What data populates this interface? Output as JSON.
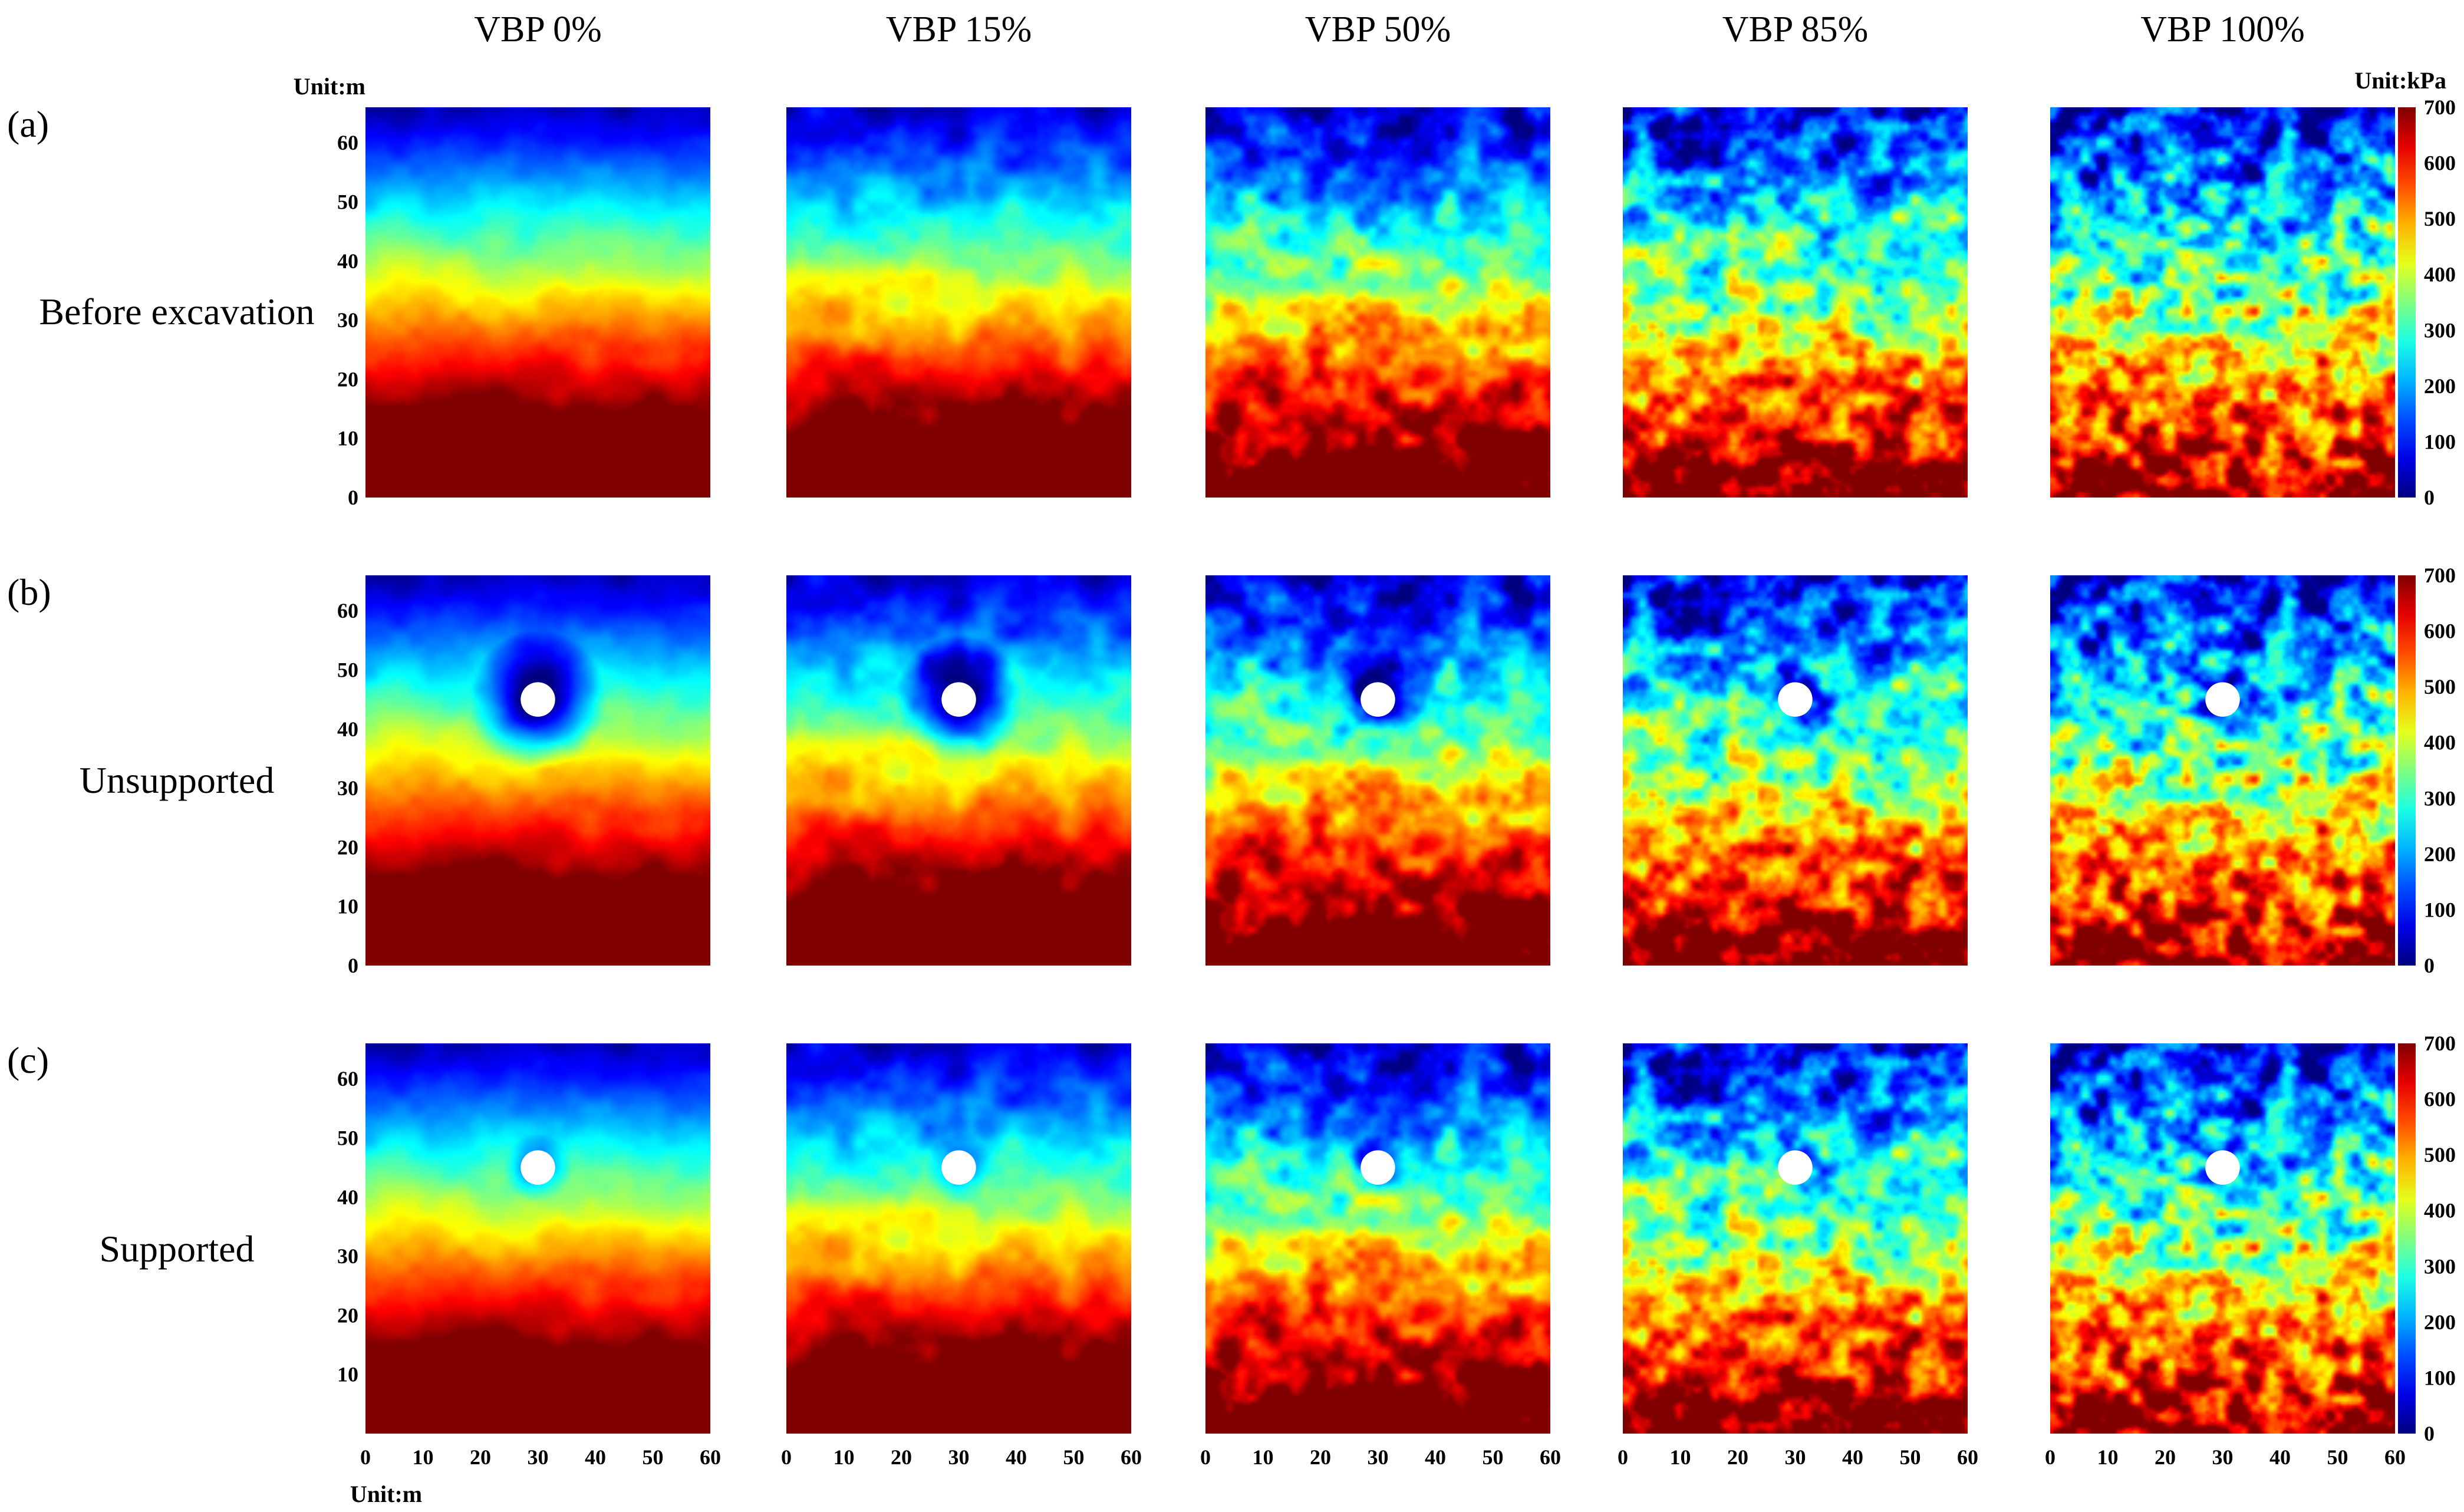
{
  "chart_data": {
    "type": "heatmap",
    "title": "",
    "column_titles": [
      "VBP 0%",
      "VBP 15%",
      "VBP 50%",
      "VBP 85%",
      "VBP 100%"
    ],
    "rows": [
      {
        "letter": "(a)",
        "label": "Before excavation",
        "tunnel": false
      },
      {
        "letter": "(b)",
        "label": "Unsupported",
        "tunnel": true
      },
      {
        "letter": "(c)",
        "label": "Supported",
        "tunnel": true
      }
    ],
    "x_axis": {
      "unit_label": "Unit:m",
      "range": [
        0,
        60
      ],
      "ticks": [
        "0",
        "10",
        "20",
        "30",
        "40",
        "50",
        "60"
      ]
    },
    "y_axis": {
      "unit_label": "Unit:m",
      "range": [
        0,
        66
      ],
      "ticks": [
        "0",
        "10",
        "20",
        "30",
        "40",
        "50",
        "60"
      ]
    },
    "colorbar": {
      "unit_label": "Unit:kPa",
      "range": [
        0,
        700
      ],
      "ticks": [
        "0",
        "100",
        "200",
        "300",
        "400",
        "500",
        "600",
        "700"
      ]
    },
    "tunnel_center_m": [
      30,
      45
    ],
    "tunnel_radius_m": 3,
    "variability": [
      0,
      0.15,
      0.5,
      0.85,
      1.0
    ],
    "colors": {
      "low": "#0000ff",
      "mid": "#00ff00",
      "high": "#ff0000"
    }
  }
}
